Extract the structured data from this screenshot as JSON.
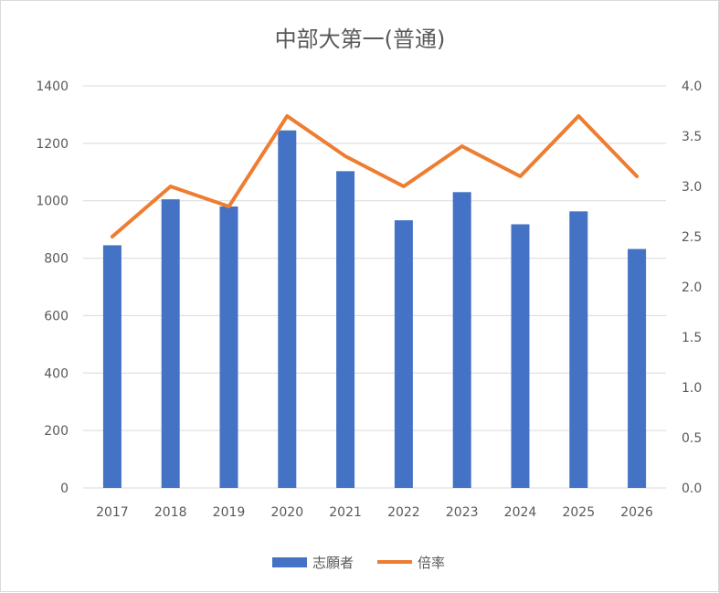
{
  "chart_data": {
    "type": "bar",
    "title": "中部大第一(普通)",
    "categories": [
      "2017",
      "2018",
      "2019",
      "2020",
      "2021",
      "2022",
      "2023",
      "2024",
      "2025",
      "2026"
    ],
    "series": [
      {
        "name": "志願者",
        "type": "bar",
        "axis": "left",
        "values": [
          845,
          1005,
          980,
          1245,
          1103,
          932,
          1030,
          918,
          963,
          832
        ]
      },
      {
        "name": "倍率",
        "type": "line",
        "axis": "right",
        "values": [
          2.5,
          3.0,
          2.8,
          3.7,
          3.3,
          3.0,
          3.4,
          3.1,
          3.7,
          3.1
        ]
      }
    ],
    "y_left": {
      "ylim": [
        0,
        1400
      ],
      "ticks": [
        "0",
        "200",
        "400",
        "600",
        "800",
        "1000",
        "1200",
        "1400"
      ]
    },
    "y_right": {
      "ylim": [
        0,
        4.0
      ],
      "ticks": [
        "0.0",
        "0.5",
        "1.0",
        "1.5",
        "2.0",
        "2.5",
        "3.0",
        "3.5",
        "4.0"
      ]
    },
    "grid": true,
    "legend": "bottom",
    "colors": {
      "bar": "#4472C4",
      "line": "#ED7D31",
      "grid": "#d9d9d9",
      "text": "#595959"
    }
  }
}
